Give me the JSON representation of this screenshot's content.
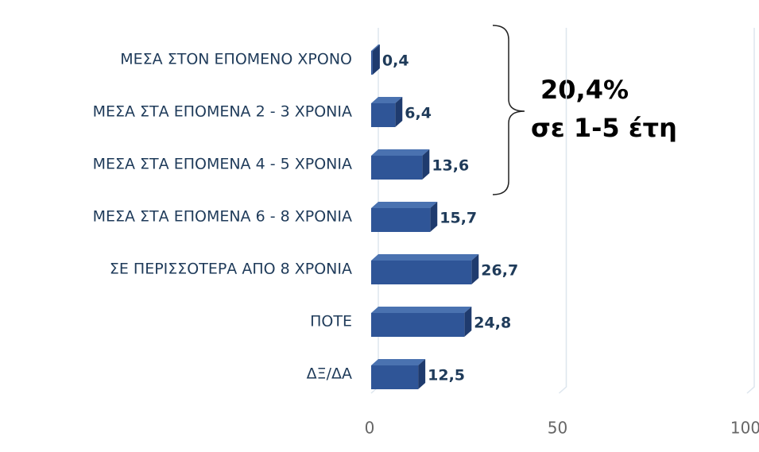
{
  "chart_data": {
    "type": "bar3d",
    "categories": [
      "ΜΕΣΑ ΣΤΟΝ ΕΠΟΜΕΝΟ ΧΡΟΝΟ",
      "ΜΕΣΑ ΣΤΑ ΕΠΟΜΕΝΑ 2 - 3 ΧΡΟΝΙΑ",
      "ΜΕΣΑ ΣΤΑ ΕΠΟΜΕΝΑ 4 - 5 ΧΡΟΝΙΑ",
      "ΜΕΣΑ ΣΤΑ ΕΠΟΜΕΝΑ 6 - 8 ΧΡΟΝΙΑ",
      "ΣΕ ΠΕΡΙΣΣΟΤΕΡΑ ΑΠΟ 8 ΧΡΟΝΙΑ",
      "ΠΟΤΕ",
      "ΔΞ/ΔΑ"
    ],
    "values": [
      0.4,
      6.4,
      13.6,
      15.7,
      26.7,
      24.8,
      12.5
    ],
    "value_labels": [
      "0,4",
      "6,4",
      "13,6",
      "15,7",
      "26,7",
      "24,8",
      "12,5"
    ],
    "color": "#2f5597",
    "xlim": [
      0,
      100
    ],
    "xticks": [
      0,
      50,
      100
    ],
    "grid": true,
    "annotation": [
      "20,4%",
      "σε 1-5 έτη"
    ]
  }
}
